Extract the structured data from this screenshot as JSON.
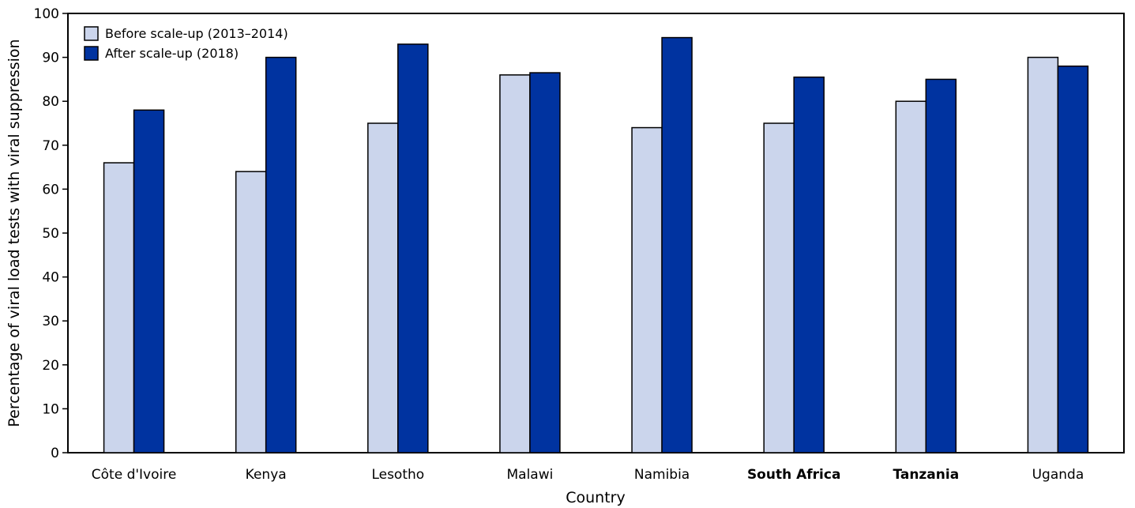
{
  "chart_data": {
    "type": "bar",
    "title": "",
    "xlabel": "Country",
    "ylabel": "Percentage of viral load tests with viral suppression",
    "ylim": [
      0,
      100
    ],
    "yticks": [
      0,
      10,
      20,
      30,
      40,
      50,
      60,
      70,
      80,
      90,
      100
    ],
    "categories": [
      "Côte d'Ivoire",
      "Kenya",
      "Lesotho",
      "Malawi",
      "Namibia",
      "South Africa",
      "Tanzania",
      "Uganda"
    ],
    "bold_categories": [
      "South Africa",
      "Tanzania"
    ],
    "series": [
      {
        "name": "Before scale-up (2013–2014)",
        "color": "#cbd5ec",
        "values": [
          66,
          64,
          75,
          86,
          74,
          75,
          80,
          90
        ]
      },
      {
        "name": "After scale-up (2018)",
        "color": "#0033a0",
        "values": [
          78,
          90,
          93,
          86.5,
          94.5,
          85.5,
          85,
          88
        ]
      }
    ],
    "legend": "top-left",
    "grid": false
  }
}
